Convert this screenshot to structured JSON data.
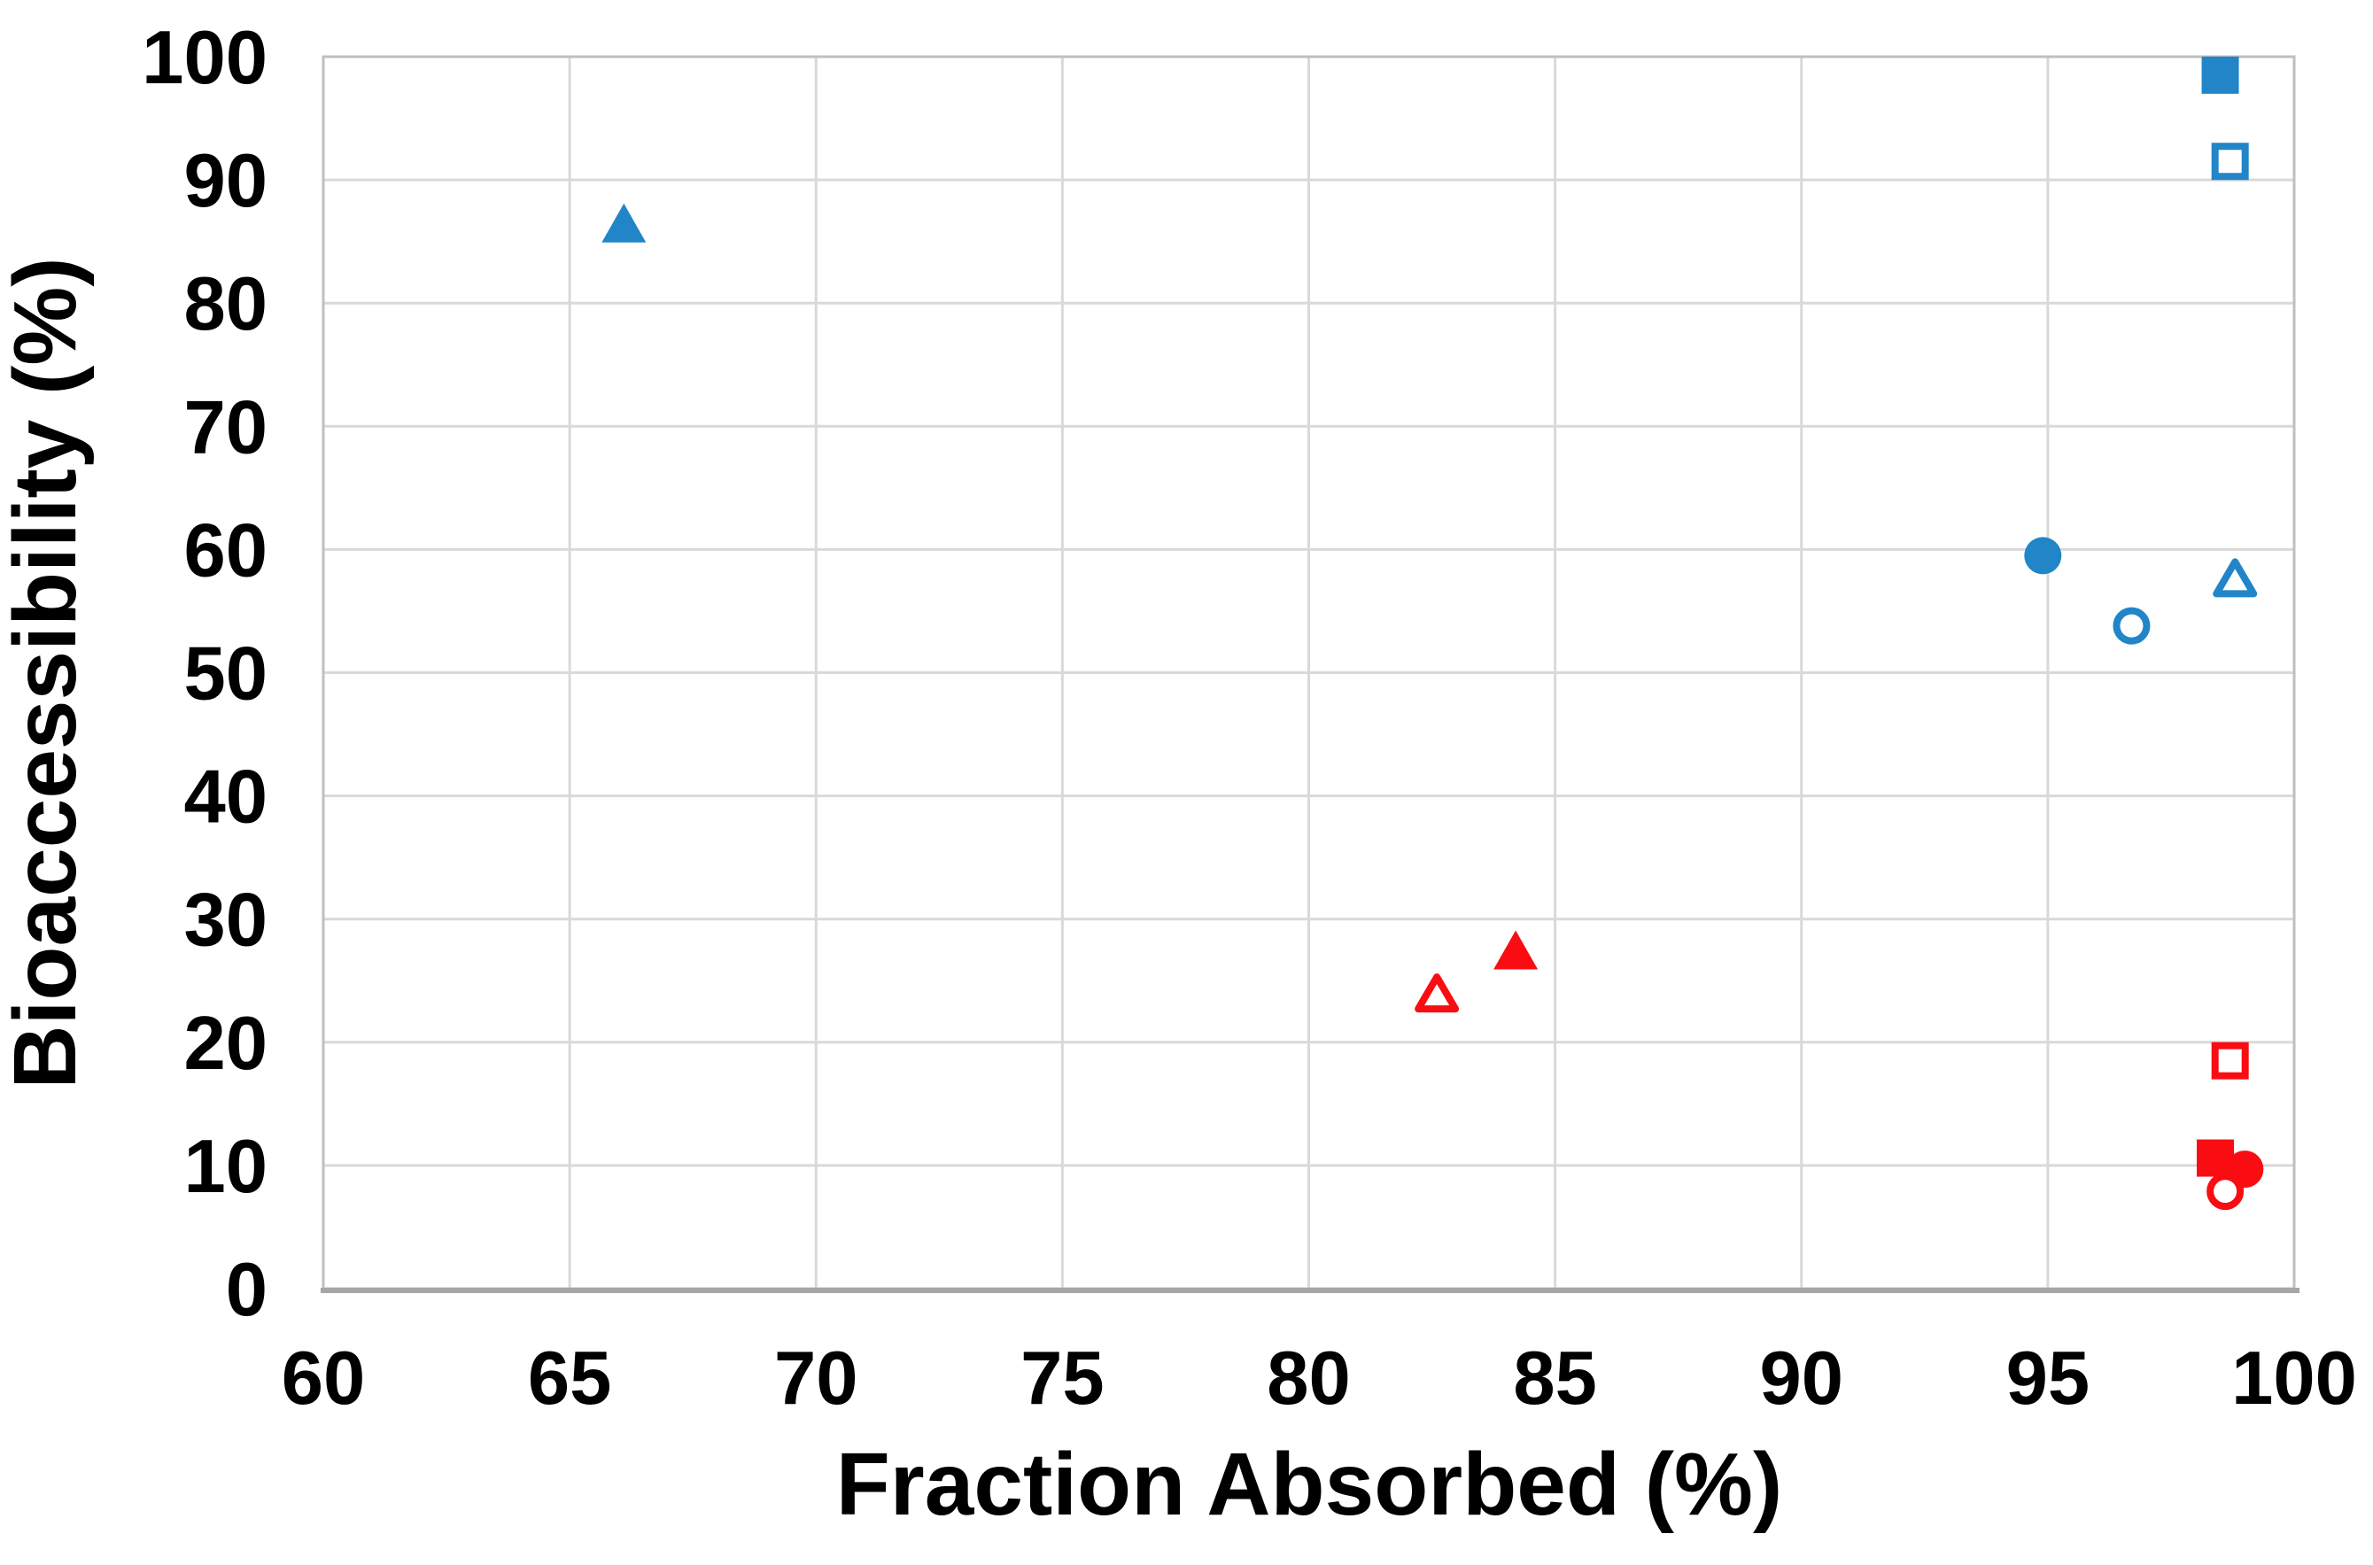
{
  "chart_data": {
    "type": "scatter",
    "title": "",
    "xlabel": "Fraction Absorbed (%)",
    "ylabel": "Bioaccessibility (%)",
    "xlim": [
      60,
      100
    ],
    "ylim": [
      0,
      100
    ],
    "xticks": [
      60,
      65,
      70,
      75,
      80,
      85,
      90,
      95,
      100
    ],
    "yticks": [
      0,
      10,
      20,
      30,
      40,
      50,
      60,
      70,
      80,
      90,
      100
    ],
    "grid": true,
    "legend_position": "none",
    "colors": {
      "blue": "#2185C8",
      "red": "#F90D12",
      "gridline": "#D9D9D9",
      "plot_border": "#BFBFBF",
      "x_axis_line": "#A6A6A6"
    },
    "series": [
      {
        "name": "blue-filled-triangle",
        "color_key": "blue",
        "marker": "triangle",
        "fill": "filled",
        "points": [
          [
            66.1,
            86.5
          ]
        ]
      },
      {
        "name": "blue-filled-square",
        "color_key": "blue",
        "marker": "square",
        "fill": "filled",
        "points": [
          [
            98.5,
            98.5
          ]
        ]
      },
      {
        "name": "blue-open-square",
        "color_key": "blue",
        "marker": "square",
        "fill": "open",
        "points": [
          [
            98.7,
            91.5
          ]
        ]
      },
      {
        "name": "blue-filled-circle",
        "color_key": "blue",
        "marker": "circle",
        "fill": "filled",
        "points": [
          [
            94.9,
            59.5
          ]
        ]
      },
      {
        "name": "blue-open-circle",
        "color_key": "blue",
        "marker": "circle",
        "fill": "open",
        "points": [
          [
            96.7,
            53.8
          ]
        ]
      },
      {
        "name": "blue-open-triangle",
        "color_key": "blue",
        "marker": "triangle",
        "fill": "open",
        "points": [
          [
            98.8,
            57.7
          ]
        ]
      },
      {
        "name": "red-open-triangle",
        "color_key": "red",
        "marker": "triangle",
        "fill": "open",
        "points": [
          [
            82.6,
            24.0
          ]
        ]
      },
      {
        "name": "red-filled-triangle",
        "color_key": "red",
        "marker": "triangle",
        "fill": "filled",
        "points": [
          [
            84.2,
            27.5
          ]
        ]
      },
      {
        "name": "red-open-square",
        "color_key": "red",
        "marker": "square",
        "fill": "open",
        "points": [
          [
            98.7,
            18.5
          ]
        ]
      },
      {
        "name": "red-filled-square",
        "color_key": "red",
        "marker": "square",
        "fill": "filled",
        "points": [
          [
            98.4,
            10.6
          ]
        ]
      },
      {
        "name": "red-filled-circle",
        "color_key": "red",
        "marker": "circle",
        "fill": "filled",
        "points": [
          [
            99.0,
            9.7
          ]
        ]
      },
      {
        "name": "red-open-circle",
        "color_key": "red",
        "marker": "circle",
        "fill": "open",
        "points": [
          [
            98.6,
            7.9
          ]
        ]
      }
    ]
  }
}
